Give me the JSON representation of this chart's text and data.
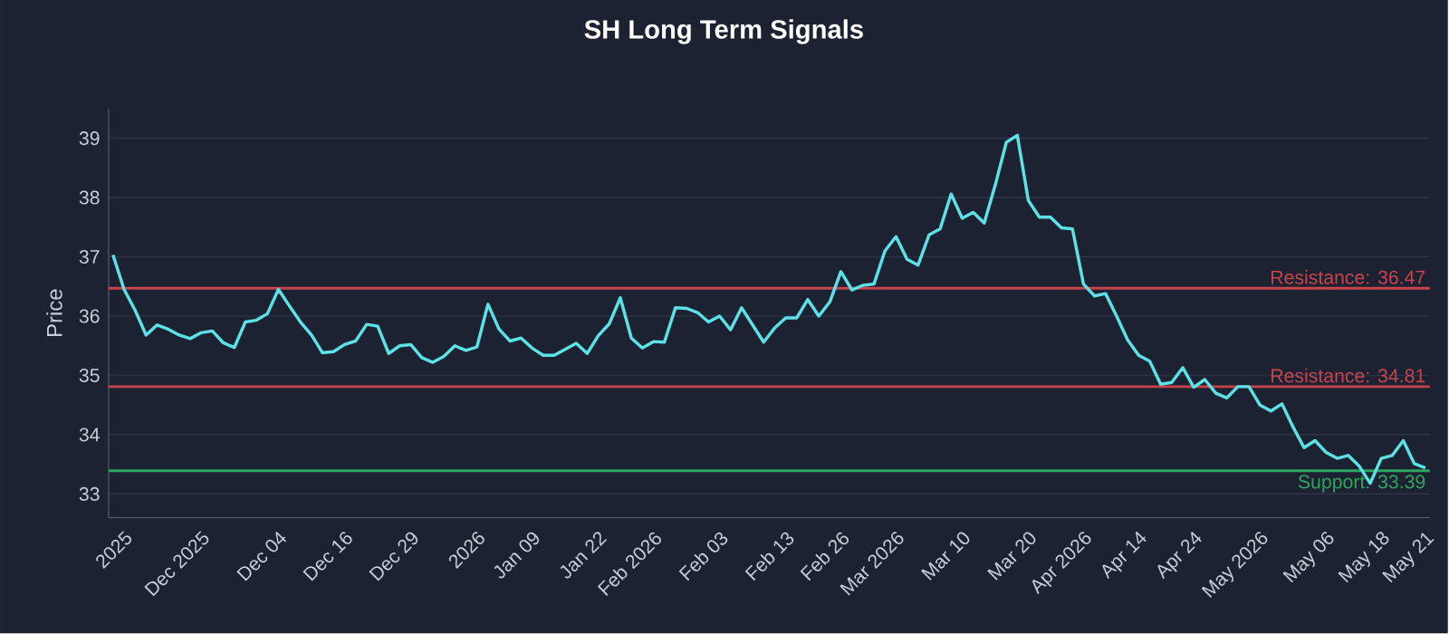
{
  "chart_data": {
    "type": "line",
    "title": "SH Long Term Signals",
    "ylabel": "Price",
    "categories": [
      null,
      "2025",
      null,
      null,
      null,
      null,
      null,
      null,
      "Dec 2025",
      null,
      null,
      null,
      null,
      null,
      null,
      "Dec 04",
      null,
      null,
      null,
      null,
      null,
      "Dec 16",
      null,
      null,
      null,
      null,
      null,
      "Dec 29",
      null,
      null,
      null,
      null,
      null,
      "2026",
      null,
      null,
      null,
      null,
      "Jan 09",
      null,
      null,
      null,
      null,
      null,
      "Jan 22",
      null,
      null,
      null,
      null,
      "Feb 2026",
      null,
      null,
      null,
      null,
      null,
      "Feb 03",
      null,
      null,
      null,
      null,
      null,
      "Feb 13",
      null,
      null,
      null,
      null,
      "Feb 26",
      null,
      null,
      null,
      null,
      "Mar 2026",
      null,
      null,
      null,
      null,
      null,
      "Mar 10",
      null,
      null,
      null,
      null,
      null,
      "Mar 20",
      null,
      null,
      null,
      null,
      "Apr 2026",
      null,
      null,
      null,
      null,
      "Apr 14",
      null,
      null,
      null,
      null,
      "Apr 24",
      null,
      null,
      null,
      null,
      null,
      "May 2026",
      null,
      null,
      null,
      null,
      null,
      "May 06",
      null,
      null,
      null,
      null,
      "May 18",
      null,
      null,
      null,
      "May 21"
    ],
    "series": [
      {
        "color": "#5ce1e6",
        "values": [
          37.03,
          36.45,
          36.1,
          35.68,
          35.85,
          35.78,
          35.68,
          35.62,
          35.72,
          35.75,
          35.55,
          35.47,
          35.9,
          35.93,
          36.04,
          36.45,
          36.17,
          35.9,
          35.68,
          35.38,
          35.4,
          35.52,
          35.58,
          35.86,
          35.83,
          35.37,
          35.5,
          35.52,
          35.3,
          35.22,
          35.32,
          35.5,
          35.42,
          35.48,
          36.2,
          35.78,
          35.58,
          35.63,
          35.46,
          35.34,
          35.34,
          35.44,
          35.54,
          35.37,
          35.67,
          35.87,
          36.31,
          35.63,
          35.46,
          35.57,
          35.56,
          36.14,
          36.13,
          36.06,
          35.9,
          36.0,
          35.77,
          36.14,
          35.85,
          35.56,
          35.8,
          35.97,
          35.97,
          36.28,
          36.0,
          36.24,
          36.75,
          36.44,
          36.52,
          36.54,
          37.1,
          37.34,
          36.96,
          36.86,
          37.37,
          37.47,
          38.06,
          37.65,
          37.75,
          37.57,
          38.21,
          38.93,
          39.05,
          37.95,
          37.67,
          37.67,
          37.49,
          37.47,
          36.54,
          36.34,
          36.38,
          36.0,
          35.6,
          35.34,
          35.24,
          34.85,
          34.88,
          35.13,
          34.8,
          34.93,
          34.7,
          34.62,
          34.81,
          34.81,
          34.5,
          34.4,
          34.52,
          34.13,
          33.78,
          33.9,
          33.7,
          33.6,
          33.65,
          33.47,
          33.18,
          33.6,
          33.65,
          33.9,
          33.51,
          33.44
        ]
      }
    ],
    "ylim": [
      32.6,
      39.5
    ],
    "yticks": [
      33,
      34,
      35,
      36,
      37,
      38,
      39
    ],
    "grid": "y",
    "marker": "none",
    "line_style": "solid",
    "ref_lines": [
      {
        "axis": "y",
        "value": 36.47,
        "label": "Resistance: 36.47",
        "color": "#c8444c"
      },
      {
        "axis": "y",
        "value": 34.81,
        "label": "Resistance: 34.81",
        "color": "#c8444c"
      },
      {
        "axis": "y",
        "value": 33.39,
        "label": "Support: 33.39",
        "color": "#2ea55e"
      }
    ]
  }
}
